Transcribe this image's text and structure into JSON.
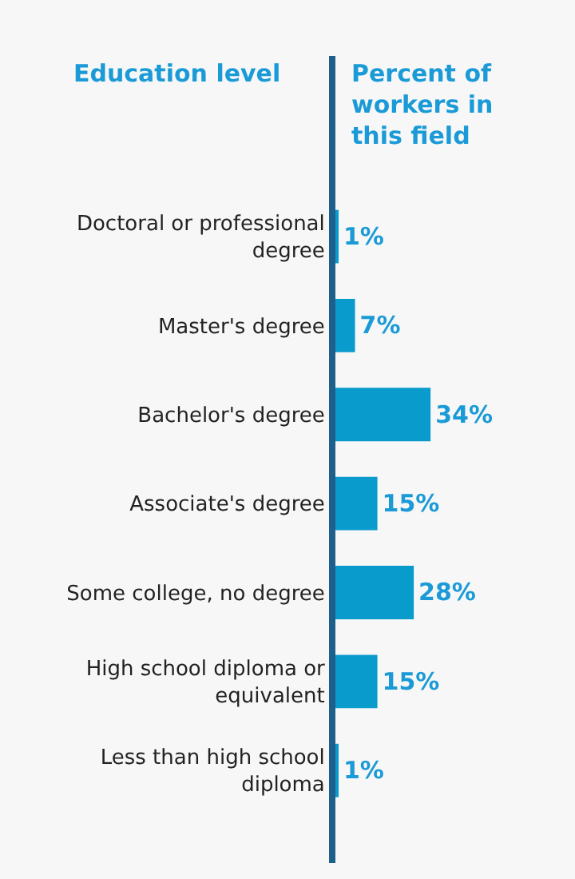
{
  "chart_data": {
    "type": "bar",
    "orientation": "horizontal",
    "ylabel": "Education level",
    "xlabel": "Percent of workers in this field",
    "categories": [
      "Doctoral or professional degree",
      "Master's degree",
      "Bachelor's degree",
      "Associate's degree",
      "Some college, no degree",
      "High school diploma or equivalent",
      "Less than high school diploma"
    ],
    "values": [
      1,
      7,
      34,
      15,
      28,
      15,
      1
    ],
    "value_labels": [
      "1%",
      "7%",
      "34%",
      "15%",
      "28%",
      "15%",
      "1%"
    ],
    "color": "#0a9bcd",
    "tick_labels": "y",
    "grid": false,
    "legend": false
  }
}
